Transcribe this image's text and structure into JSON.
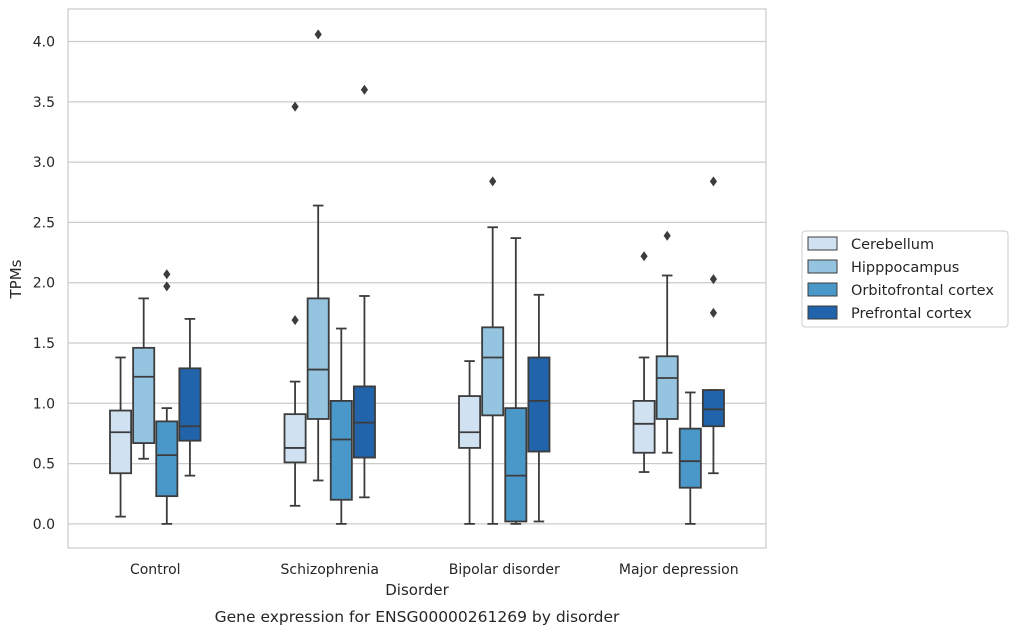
{
  "chart_data": {
    "type": "box",
    "caption": "Gene expression for ENSG00000261269 by disorder",
    "xlabel": "Disorder",
    "ylabel": "TPMs",
    "ylim": [
      -0.2,
      4.27
    ],
    "yticks": [
      0.0,
      0.5,
      1.0,
      1.5,
      2.0,
      2.5,
      3.0,
      3.5,
      4.0
    ],
    "ytick_labels": [
      "0.0",
      "0.5",
      "1.0",
      "1.5",
      "2.0",
      "2.5",
      "3.0",
      "3.5",
      "4.0"
    ],
    "grid": "horizontal",
    "legend_position": "right",
    "categories": [
      "Control",
      "Schizophrenia",
      "Bipolar disorder",
      "Major depression"
    ],
    "series": [
      {
        "name": "Cerebellum",
        "color": "#d0e1f2",
        "boxes": [
          {
            "whislo": 0.06,
            "q1": 0.42,
            "med": 0.76,
            "q3": 0.94,
            "whishi": 1.38,
            "fliers": []
          },
          {
            "whislo": 0.15,
            "q1": 0.51,
            "med": 0.63,
            "q3": 0.91,
            "whishi": 1.18,
            "fliers": [
              1.69,
              3.46
            ]
          },
          {
            "whislo": 0.0,
            "q1": 0.63,
            "med": 0.76,
            "q3": 1.06,
            "whishi": 1.35,
            "fliers": []
          },
          {
            "whislo": 0.43,
            "q1": 0.59,
            "med": 0.83,
            "q3": 1.02,
            "whishi": 1.38,
            "fliers": [
              2.22
            ]
          }
        ]
      },
      {
        "name": "Hipppocampus",
        "color": "#94c4df",
        "boxes": [
          {
            "whislo": 0.54,
            "q1": 0.67,
            "med": 1.22,
            "q3": 1.46,
            "whishi": 1.87,
            "fliers": []
          },
          {
            "whislo": 0.36,
            "q1": 0.87,
            "med": 1.28,
            "q3": 1.87,
            "whishi": 2.64,
            "fliers": [
              4.06
            ]
          },
          {
            "whislo": 0.0,
            "q1": 0.9,
            "med": 1.38,
            "q3": 1.63,
            "whishi": 2.46,
            "fliers": [
              2.84
            ]
          },
          {
            "whislo": 0.59,
            "q1": 0.87,
            "med": 1.21,
            "q3": 1.39,
            "whishi": 2.06,
            "fliers": [
              2.39
            ]
          }
        ]
      },
      {
        "name": "Orbitofrontal cortex",
        "color": "#4a98c9",
        "boxes": [
          {
            "whislo": 0.0,
            "q1": 0.23,
            "med": 0.57,
            "q3": 0.85,
            "whishi": 0.96,
            "fliers": [
              1.97,
              2.07
            ]
          },
          {
            "whislo": 0.0,
            "q1": 0.2,
            "med": 0.7,
            "q3": 1.02,
            "whishi": 1.62,
            "fliers": []
          },
          {
            "whislo": 0.0,
            "q1": 0.02,
            "med": 0.4,
            "q3": 0.96,
            "whishi": 2.37,
            "fliers": []
          },
          {
            "whislo": 0.0,
            "q1": 0.3,
            "med": 0.52,
            "q3": 0.79,
            "whishi": 1.09,
            "fliers": []
          }
        ]
      },
      {
        "name": "Prefrontal cortex",
        "color": "#2164ab",
        "boxes": [
          {
            "whislo": 0.4,
            "q1": 0.69,
            "med": 0.81,
            "q3": 1.29,
            "whishi": 1.7,
            "fliers": []
          },
          {
            "whislo": 0.22,
            "q1": 0.55,
            "med": 0.84,
            "q3": 1.14,
            "whishi": 1.89,
            "fliers": [
              3.6
            ]
          },
          {
            "whislo": 0.02,
            "q1": 0.6,
            "med": 1.02,
            "q3": 1.38,
            "whishi": 1.9,
            "fliers": []
          },
          {
            "whislo": 0.42,
            "q1": 0.81,
            "med": 0.95,
            "q3": 1.11,
            "whishi": 1.11,
            "fliers": [
              1.75,
              2.03,
              2.84
            ]
          }
        ]
      }
    ]
  }
}
